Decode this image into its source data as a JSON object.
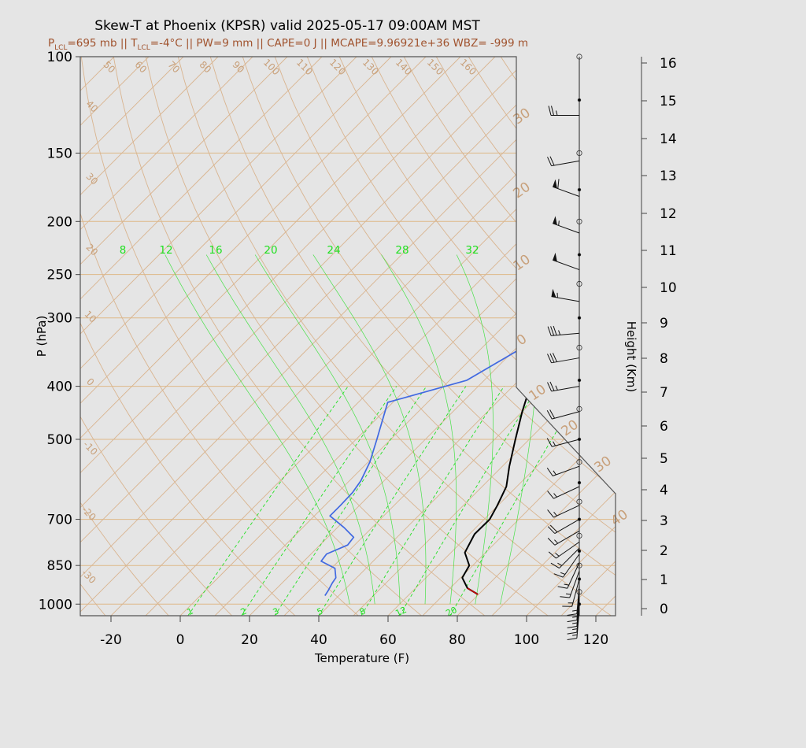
{
  "title": "Skew-T at Phoenix (KPSR) valid 2025-05-17 09:00AM MST",
  "subtitle": {
    "p_sym": "P",
    "p_sub": "LCL",
    "p_text": "=695 mb || ",
    "t_sym": "T",
    "t_sub": "LCL",
    "t_text": "=-4°C || PW=9 mm || CAPE=0 J || MCAPE=9.96921e+36 WBZ= -999 m"
  },
  "colors": {
    "temperature": "#000000",
    "dewpoint": "#4169e1",
    "parcel": "#cc0000",
    "isotherm": "#d9b48f",
    "dry_adiabat": "#d9b48f",
    "mixing_ratio": "#22e022",
    "moist_adiabat": "#22e022",
    "isobar": "#deb887",
    "title": "#000000",
    "subtitle": "#a0522d",
    "frame": "#555555"
  },
  "chart_data": {
    "type": "line",
    "chart_kind": "skew-t log-p",
    "xlabel": "Temperature (F)",
    "ylabel": "P (hPa)",
    "y2label": "Height (Km)",
    "xlim": [
      -29,
      125
    ],
    "ylim": [
      1050,
      100
    ],
    "y_scale": "log",
    "x_ticks": [
      -20,
      0,
      20,
      40,
      60,
      80,
      100,
      120
    ],
    "y_ticks": [
      100,
      150,
      200,
      250,
      300,
      400,
      500,
      700,
      850,
      1000
    ],
    "height_ticks": [
      0,
      1,
      2,
      3,
      4,
      5,
      6,
      7,
      8,
      9,
      10,
      11,
      12,
      13,
      14,
      15,
      16
    ],
    "isotherm_labels_F": [
      -30,
      -20,
      -10,
      0,
      10,
      20,
      30,
      40,
      50,
      60,
      70,
      80,
      90,
      100,
      110,
      120,
      130,
      140,
      150,
      160
    ],
    "isotherm_labels_right": [
      30,
      20,
      10,
      0,
      -10,
      -20,
      -30,
      -40
    ],
    "mixing_ratio_top_labels": [
      8,
      12,
      16,
      20,
      24,
      28,
      32
    ],
    "mixing_ratio_bottom_labels": [
      1,
      2,
      3,
      5,
      8,
      12,
      20
    ],
    "series": [
      {
        "name": "temperature",
        "points": [
          [
            79.8,
            960
          ],
          [
            75,
            935
          ],
          [
            70.5,
            895
          ],
          [
            69,
            850
          ],
          [
            64,
            805
          ],
          [
            61.5,
            745
          ],
          [
            61.6,
            700
          ],
          [
            59.8,
            660
          ],
          [
            57,
            610
          ],
          [
            52,
            560
          ],
          [
            46,
            500
          ],
          [
            40,
            445
          ],
          [
            35,
            400
          ],
          [
            29,
            355
          ],
          [
            23,
            300
          ],
          [
            17,
            262
          ],
          [
            15,
            245
          ],
          [
            15.5,
            220
          ],
          [
            17.5,
            200
          ],
          [
            22,
            175
          ],
          [
            27,
            155
          ],
          [
            38,
            128
          ],
          [
            51,
            110
          ],
          [
            61,
            100
          ]
        ]
      },
      {
        "name": "dewpoint",
        "points": [
          [
            36,
            965
          ],
          [
            35.5,
            945
          ],
          [
            34.5,
            915
          ],
          [
            34,
            895
          ],
          [
            31,
            860
          ],
          [
            25,
            835
          ],
          [
            24.5,
            810
          ],
          [
            28,
            780
          ],
          [
            27.5,
            755
          ],
          [
            22,
            725
          ],
          [
            14.5,
            690
          ],
          [
            14.5,
            660
          ],
          [
            14.3,
            625
          ],
          [
            13.3,
            595
          ],
          [
            10.5,
            550
          ],
          [
            6,
            500
          ],
          [
            2.5,
            465
          ],
          [
            -1.5,
            428
          ],
          [
            15,
            390
          ],
          [
            21,
            345
          ],
          [
            16,
            300
          ],
          [
            2,
            260
          ],
          [
            -12,
            200
          ],
          [
            -22,
            170
          ],
          [
            -22,
            135
          ],
          [
            -3,
            100
          ]
        ]
      },
      {
        "name": "parcel",
        "points": [
          [
            79.8,
            960
          ],
          [
            75,
            935
          ]
        ]
      }
    ],
    "winds": {
      "pressures": [
        100,
        128,
        155,
        180,
        210,
        245,
        280,
        320,
        355,
        400,
        445,
        500,
        560,
        610,
        660,
        700,
        735,
        770,
        790,
        810,
        840,
        870,
        900,
        925,
        950,
        975,
        1000,
        1025
      ],
      "speeds": [
        0,
        25,
        20,
        60,
        55,
        50,
        55,
        35,
        30,
        25,
        20,
        15,
        15,
        15,
        15,
        20,
        15,
        15,
        15,
        15,
        15,
        15,
        15,
        15,
        15,
        15,
        15,
        15
      ],
      "directions": [
        0,
        270,
        260,
        290,
        290,
        290,
        280,
        265,
        260,
        260,
        255,
        255,
        250,
        245,
        245,
        240,
        240,
        235,
        225,
        215,
        205,
        200,
        195,
        185,
        185,
        185,
        185,
        185
      ],
      "marker_pressures": [
        100,
        120,
        150,
        175,
        200,
        230,
        260,
        300,
        340,
        390,
        440,
        500,
        550,
        600,
        650,
        700,
        750,
        800,
        850,
        900,
        950,
        1000
      ]
    }
  }
}
